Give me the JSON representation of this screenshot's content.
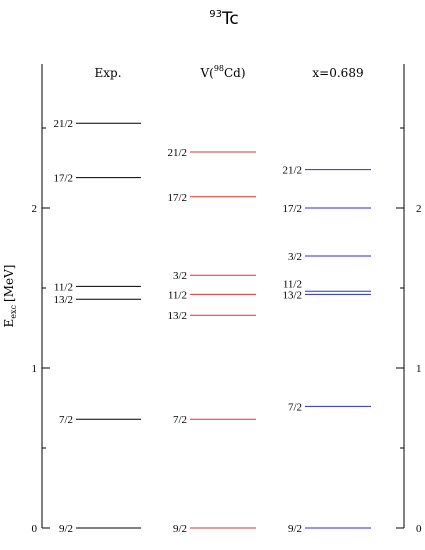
{
  "chart_data": {
    "type": "level-scheme",
    "title": {
      "sup": "93",
      "base": "Tc"
    },
    "ylabel": {
      "main": "E",
      "sub": "exc",
      "unit": "[MeV]"
    },
    "ylim": [
      0,
      2.9
    ],
    "yticks": [
      0,
      1,
      2
    ],
    "colors": {
      "axis": "#000000",
      "exp": "#000000",
      "v98cd": "#e03030",
      "x0689": "#2a2ae0"
    },
    "columns": [
      {
        "name_prefix": "Exp.",
        "name_sup": "",
        "name_suffix": "",
        "color_key": "exp",
        "levels": [
          {
            "label": "9/2",
            "energy": 0.0
          },
          {
            "label": "7/2",
            "energy": 0.68
          },
          {
            "label": "13/2",
            "energy": 1.43
          },
          {
            "label": "11/2",
            "energy": 1.51
          },
          {
            "label": "17/2",
            "energy": 2.19
          },
          {
            "label": "21/2",
            "energy": 2.53
          }
        ]
      },
      {
        "name_prefix": "V(",
        "name_sup": "98",
        "name_suffix": "Cd)",
        "color_key": "v98cd",
        "levels": [
          {
            "label": "9/2",
            "energy": 0.0
          },
          {
            "label": "7/2",
            "energy": 0.68
          },
          {
            "label": "13/2",
            "energy": 1.33
          },
          {
            "label": "11/2",
            "energy": 1.46
          },
          {
            "label": "3/2",
            "energy": 1.58
          },
          {
            "label": "17/2",
            "energy": 2.07
          },
          {
            "label": "21/2",
            "energy": 2.35
          }
        ]
      },
      {
        "name_prefix": "x=0.689",
        "name_sup": "",
        "name_suffix": "",
        "color_key": "x0689",
        "levels": [
          {
            "label": "9/2",
            "energy": 0.0
          },
          {
            "label": "7/2",
            "energy": 0.76
          },
          {
            "label": "13/2",
            "energy": 1.46
          },
          {
            "label": "11/2",
            "energy": 1.48
          },
          {
            "label": "3/2",
            "energy": 1.7
          },
          {
            "label": "17/2",
            "energy": 2.0
          },
          {
            "label": "21/2",
            "energy": 2.24
          }
        ]
      }
    ]
  }
}
